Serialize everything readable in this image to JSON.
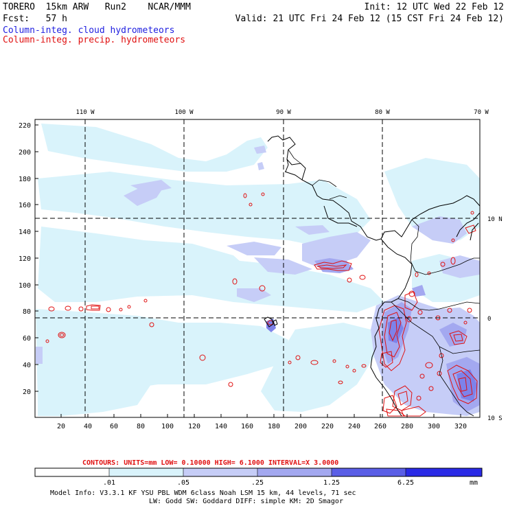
{
  "header": {
    "model": "TORERO  15km ARW   Run2    NCAR/MMM",
    "init": "Init: 12 UTC Wed 22 Feb 12",
    "fcst": "Fcst:   57 h",
    "valid": "Valid: 21 UTC Fri 24 Feb 12 (15 CST Fri 24 Feb 12)",
    "legend_cloud": "Column-integ. cloud hydrometeors",
    "legend_precip": "Column-integ. precip. hydrometeors"
  },
  "map": {
    "lon_labels": [
      "110 W",
      "100 W",
      "90 W",
      "80 W",
      "70 W"
    ],
    "lat_labels": [
      "10 N",
      "0",
      "10 S"
    ],
    "y_ticks": [
      "220",
      "200",
      "180",
      "160",
      "140",
      "120",
      "100",
      "80",
      "60",
      "40",
      "20"
    ],
    "x_ticks": [
      "20",
      "40",
      "60",
      "80",
      "100",
      "120",
      "140",
      "160",
      "180",
      "200",
      "220",
      "240",
      "260",
      "280",
      "300",
      "320"
    ]
  },
  "contours_info": {
    "label": "CONTOURS:  UNITS=mm  LOW= 0.10000      HIGH=  6.1000      INTERVAL=X  3.0000"
  },
  "colorbar": {
    "labels": [
      ".01",
      ".05",
      ".25",
      "1.25",
      "6.25"
    ],
    "unit": "mm",
    "colors": [
      "#ffffff",
      "#d9f3fb",
      "#c6cdf7",
      "#a3a8f0",
      "#7d82ea",
      "#5a5ee6",
      "#2a2ae6"
    ]
  },
  "footer": {
    "line1": "Model Info: V3.3.1   KF     YSU PBL  WDM 6class  Noah LSM  15 km,   44 levels,   71 sec",
    "line2": "LW: Godd SW: Goddard DIFF: simple KM: 2D Smagor"
  }
}
